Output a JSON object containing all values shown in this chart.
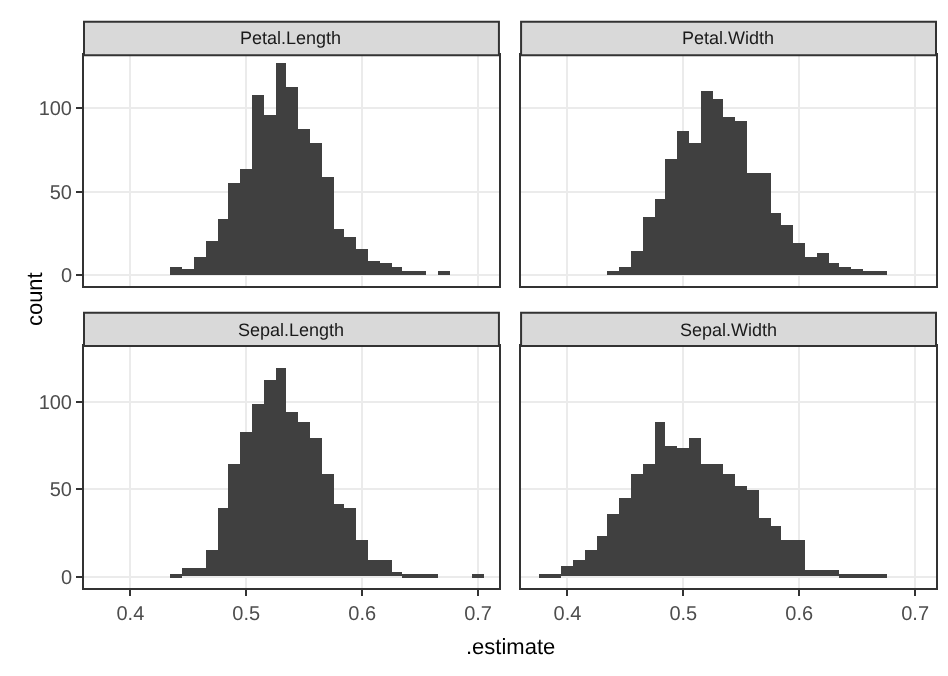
{
  "chart_data": [
    {
      "type": "histogram",
      "title": "Petal.Length",
      "xlabel": ".estimate",
      "ylabel": "count",
      "color": "#404040",
      "grid": true,
      "tick_labels": "y",
      "xlim": [
        0.36,
        0.718
      ],
      "xticks": [
        0.4,
        0.5,
        0.6,
        0.7
      ],
      "ylim": [
        -6.5,
        132
      ],
      "yticks": [
        0,
        50,
        100
      ],
      "bins": [
        0.375,
        0.385,
        0.395,
        0.405,
        0.415,
        0.425,
        0.435,
        0.445,
        0.455,
        0.465,
        0.475,
        0.485,
        0.495,
        0.505,
        0.515,
        0.525,
        0.535,
        0.545,
        0.555,
        0.565,
        0.575,
        0.585,
        0.595,
        0.605,
        0.615,
        0.625,
        0.635,
        0.645,
        0.655,
        0.665,
        0.675,
        0.685,
        0.695,
        0.705
      ],
      "values": [
        0,
        0,
        0,
        0,
        0,
        0,
        4,
        3,
        11,
        20,
        34,
        55,
        63,
        108,
        96,
        127,
        113,
        87,
        79,
        59,
        28,
        23,
        15,
        8,
        7,
        5,
        1,
        1,
        0,
        2,
        0,
        0,
        0
      ]
    },
    {
      "type": "histogram",
      "title": "Petal.Width",
      "color": "#404040",
      "grid": true,
      "tick_labels": false,
      "xlim": [
        0.36,
        0.718
      ],
      "xticks": [
        0.4,
        0.5,
        0.6,
        0.7
      ],
      "ylim": [
        -6.5,
        132
      ],
      "yticks": [
        0,
        50,
        100
      ],
      "bins": [
        0.375,
        0.385,
        0.395,
        0.405,
        0.415,
        0.425,
        0.435,
        0.445,
        0.455,
        0.465,
        0.475,
        0.485,
        0.495,
        0.505,
        0.515,
        0.525,
        0.535,
        0.545,
        0.555,
        0.565,
        0.575,
        0.585,
        0.595,
        0.605,
        0.615,
        0.625,
        0.635,
        0.645,
        0.655,
        0.665,
        0.675,
        0.685,
        0.695,
        0.705
      ],
      "values": [
        0,
        0,
        0,
        0,
        0,
        0,
        2,
        5,
        14,
        35,
        46,
        70,
        86,
        79,
        110,
        105,
        95,
        92,
        61,
        61,
        37,
        30,
        19,
        11,
        13,
        7,
        4,
        3,
        1,
        1,
        0,
        0,
        0
      ]
    },
    {
      "type": "histogram",
      "title": "Sepal.Length",
      "color": "#404040",
      "grid": true,
      "xlim": [
        0.36,
        0.718
      ],
      "xticks": [
        0.4,
        0.5,
        0.6,
        0.7
      ],
      "ylim": [
        -6.5,
        132
      ],
      "yticks": [
        0,
        50,
        100
      ],
      "bins": [
        0.375,
        0.385,
        0.395,
        0.405,
        0.415,
        0.425,
        0.435,
        0.445,
        0.455,
        0.465,
        0.475,
        0.485,
        0.495,
        0.505,
        0.515,
        0.525,
        0.535,
        0.545,
        0.555,
        0.565,
        0.575,
        0.585,
        0.595,
        0.605,
        0.615,
        0.625,
        0.635,
        0.645,
        0.655,
        0.665,
        0.675,
        0.685,
        0.695,
        0.705
      ],
      "values": [
        0,
        0,
        0,
        0,
        0,
        0,
        1,
        5,
        5,
        15,
        39,
        64,
        83,
        99,
        112,
        119,
        94,
        88,
        79,
        59,
        42,
        39,
        21,
        9,
        9,
        3,
        1,
        1,
        1,
        0,
        0,
        0,
        1
      ]
    },
    {
      "type": "histogram",
      "title": "Sepal.Width",
      "color": "#404040",
      "grid": true,
      "tick_labels": "x",
      "xlim": [
        0.36,
        0.718
      ],
      "xticks": [
        0.4,
        0.5,
        0.6,
        0.7
      ],
      "ylim": [
        -6.5,
        132
      ],
      "yticks": [
        0,
        50,
        100
      ],
      "bins": [
        0.375,
        0.385,
        0.395,
        0.405,
        0.415,
        0.425,
        0.435,
        0.445,
        0.455,
        0.465,
        0.475,
        0.485,
        0.495,
        0.505,
        0.515,
        0.525,
        0.535,
        0.545,
        0.555,
        0.565,
        0.575,
        0.585,
        0.595,
        0.605,
        0.615,
        0.625,
        0.635,
        0.645,
        0.655,
        0.665,
        0.675,
        0.685,
        0.695,
        0.705
      ],
      "values": [
        1,
        1,
        6,
        9,
        15,
        23,
        36,
        45,
        59,
        65,
        88,
        75,
        74,
        79,
        65,
        65,
        59,
        52,
        49,
        34,
        29,
        21,
        21,
        4,
        4,
        4,
        1,
        1,
        1,
        1,
        0,
        0,
        0
      ]
    }
  ]
}
